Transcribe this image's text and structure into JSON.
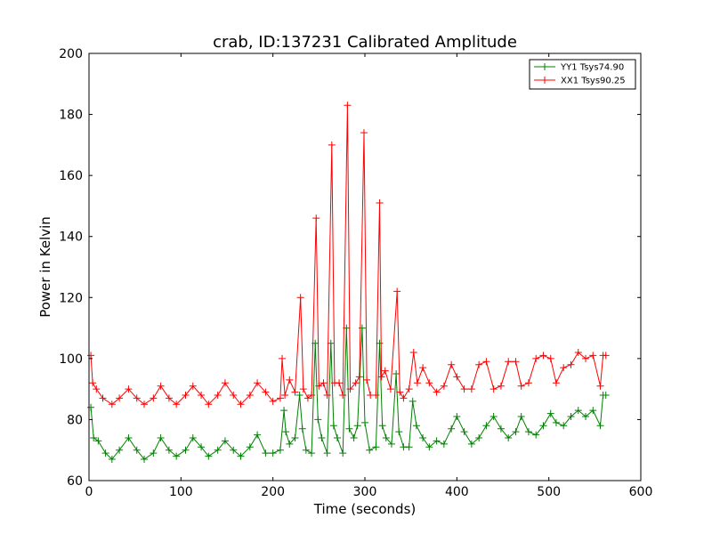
{
  "chart_data": {
    "type": "line",
    "title": "crab, ID:137231 Calibrated Amplitude",
    "xlabel": "Time (seconds)",
    "ylabel": "Power in Kelvin",
    "xlim": [
      0,
      600
    ],
    "ylim": [
      60,
      200
    ],
    "xticks": [
      "0",
      "100",
      "200",
      "300",
      "400",
      "500",
      "600"
    ],
    "yticks": [
      "60",
      "80",
      "100",
      "120",
      "140",
      "160",
      "180",
      "200"
    ],
    "grid": false,
    "legend_position": "top-right",
    "marker": "+",
    "series": [
      {
        "name": "YY1 Tsys74.90",
        "color": "#008000",
        "x": [
          2,
          5,
          10,
          18,
          25,
          33,
          43,
          52,
          60,
          70,
          78,
          87,
          95,
          105,
          113,
          122,
          130,
          140,
          148,
          157,
          165,
          175,
          183,
          192,
          200,
          208,
          212,
          214,
          218,
          224,
          229,
          232,
          236,
          242,
          246,
          249,
          253,
          259,
          263,
          266,
          270,
          276,
          280,
          283,
          288,
          292,
          297,
          300,
          305,
          312,
          316,
          319,
          323,
          329,
          334,
          337,
          342,
          348,
          352,
          356,
          363,
          370,
          378,
          386,
          394,
          400,
          408,
          416,
          424,
          432,
          440,
          448,
          456,
          464,
          470,
          478,
          486,
          494,
          502,
          508,
          516,
          524,
          532,
          540,
          548,
          556,
          559,
          562
        ],
        "values": [
          84,
          74,
          73,
          69,
          67,
          70,
          74,
          70,
          67,
          69,
          74,
          70,
          68,
          70,
          74,
          71,
          68,
          70,
          73,
          70,
          68,
          71,
          75,
          69,
          69,
          70,
          83,
          76,
          72,
          74,
          88,
          77,
          70,
          69,
          105,
          80,
          74,
          69,
          105,
          78,
          74,
          69,
          110,
          77,
          74,
          78,
          110,
          79,
          70,
          71,
          105,
          78,
          74,
          72,
          95,
          76,
          71,
          71,
          86,
          78,
          74,
          71,
          73,
          72,
          77,
          81,
          76,
          72,
          74,
          78,
          81,
          77,
          74,
          76,
          81,
          76,
          75,
          78,
          82,
          79,
          78,
          81,
          83,
          81,
          83,
          78,
          88,
          88
        ]
      },
      {
        "name": "XX1 Tsys90.25",
        "color": "#ff0000",
        "x": [
          2,
          4,
          8,
          15,
          25,
          33,
          43,
          52,
          60,
          70,
          78,
          87,
          95,
          105,
          113,
          122,
          130,
          140,
          148,
          157,
          165,
          175,
          183,
          192,
          200,
          208,
          210,
          213,
          218,
          224,
          230,
          233,
          238,
          242,
          247,
          250,
          255,
          259,
          264,
          267,
          272,
          276,
          281,
          284,
          290,
          294,
          299,
          302,
          306,
          312,
          316,
          318,
          322,
          328,
          335,
          338,
          342,
          348,
          353,
          357,
          363,
          370,
          378,
          386,
          394,
          400,
          408,
          416,
          424,
          432,
          440,
          448,
          456,
          464,
          470,
          478,
          486,
          494,
          502,
          508,
          516,
          524,
          532,
          540,
          548,
          556,
          559,
          562
        ],
        "values": [
          101,
          92,
          90,
          87,
          85,
          87,
          90,
          87,
          85,
          87,
          91,
          87,
          85,
          88,
          91,
          88,
          85,
          88,
          92,
          88,
          85,
          88,
          92,
          89,
          86,
          87,
          100,
          88,
          93,
          89,
          120,
          90,
          87,
          88,
          146,
          91,
          92,
          88,
          170,
          92,
          92,
          88,
          183,
          90,
          92,
          94,
          174,
          93,
          88,
          88,
          151,
          94,
          96,
          90,
          122,
          89,
          87,
          90,
          102,
          92,
          97,
          92,
          89,
          91,
          98,
          94,
          90,
          90,
          98,
          99,
          90,
          91,
          99,
          99,
          91,
          92,
          100,
          101,
          100,
          92,
          97,
          98,
          102,
          100,
          101,
          91,
          101,
          101
        ]
      }
    ]
  }
}
